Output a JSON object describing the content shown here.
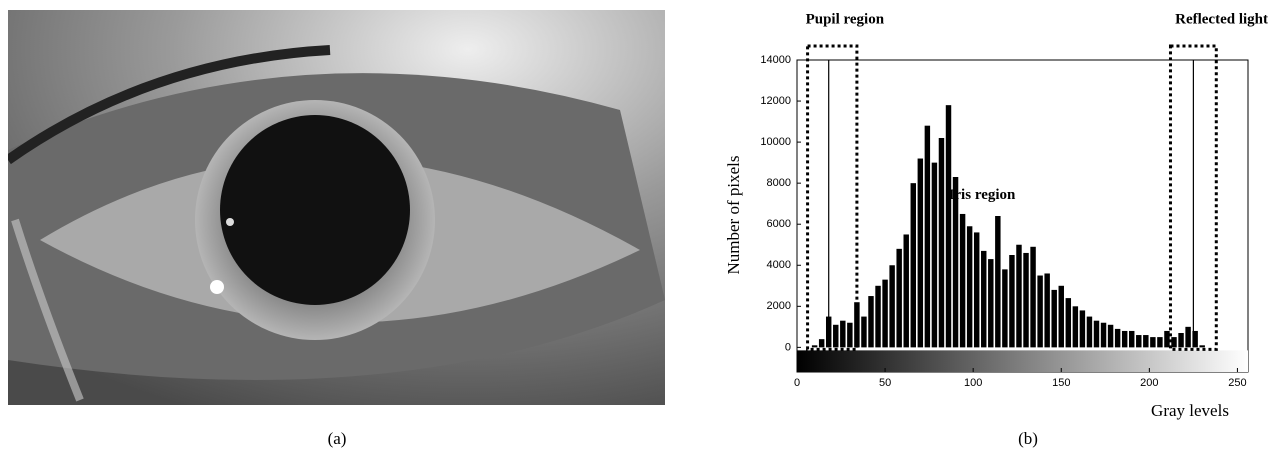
{
  "captions": [
    "(a)",
    "(b)"
  ],
  "chart_data": {
    "type": "histogram",
    "xlabel": "Gray levels",
    "ylabel": "Number of pixels",
    "color": "#000000",
    "bins": [
      0,
      4,
      8,
      12,
      16,
      20,
      24,
      28,
      32,
      36,
      40,
      44,
      48,
      52,
      56,
      60,
      64,
      68,
      72,
      76,
      80,
      84,
      88,
      92,
      96,
      100,
      104,
      108,
      112,
      116,
      120,
      124,
      128,
      132,
      136,
      140,
      144,
      148,
      152,
      156,
      160,
      164,
      168,
      172,
      176,
      180,
      184,
      188,
      192,
      196,
      200,
      204,
      208,
      212,
      216,
      220,
      224,
      228,
      232,
      236,
      240,
      244,
      248,
      252,
      256
    ],
    "values": [
      0,
      0,
      100,
      400,
      1500,
      1100,
      1300,
      1200,
      2200,
      1500,
      2500,
      3000,
      3300,
      4000,
      4800,
      5500,
      8000,
      9200,
      10800,
      9000,
      10200,
      11800,
      8300,
      6500,
      5900,
      5600,
      4700,
      4300,
      6400,
      3800,
      4500,
      5000,
      4600,
      4900,
      3500,
      3600,
      2800,
      3000,
      2400,
      2000,
      1800,
      1500,
      1300,
      1200,
      1100,
      900,
      800,
      800,
      600,
      600,
      500,
      500,
      800,
      500,
      700,
      1000,
      800,
      100,
      0,
      0,
      0,
      0,
      0,
      0
    ],
    "xlim": [
      0,
      256
    ],
    "ylim": [
      -1200,
      14000
    ],
    "xticks": [
      0,
      50,
      100,
      150,
      200,
      250
    ],
    "yticks": [
      0,
      2000,
      4000,
      6000,
      8000,
      10000,
      12000,
      14000
    ],
    "markers": [
      18,
      225
    ],
    "regions": [
      {
        "label": "Pupil region",
        "range": [
          6,
          34
        ]
      },
      {
        "label": "Reflected light",
        "range": [
          212,
          238
        ]
      }
    ],
    "annotations": [
      {
        "text": "Iris region",
        "x": 105,
        "y": 7400
      }
    ]
  }
}
